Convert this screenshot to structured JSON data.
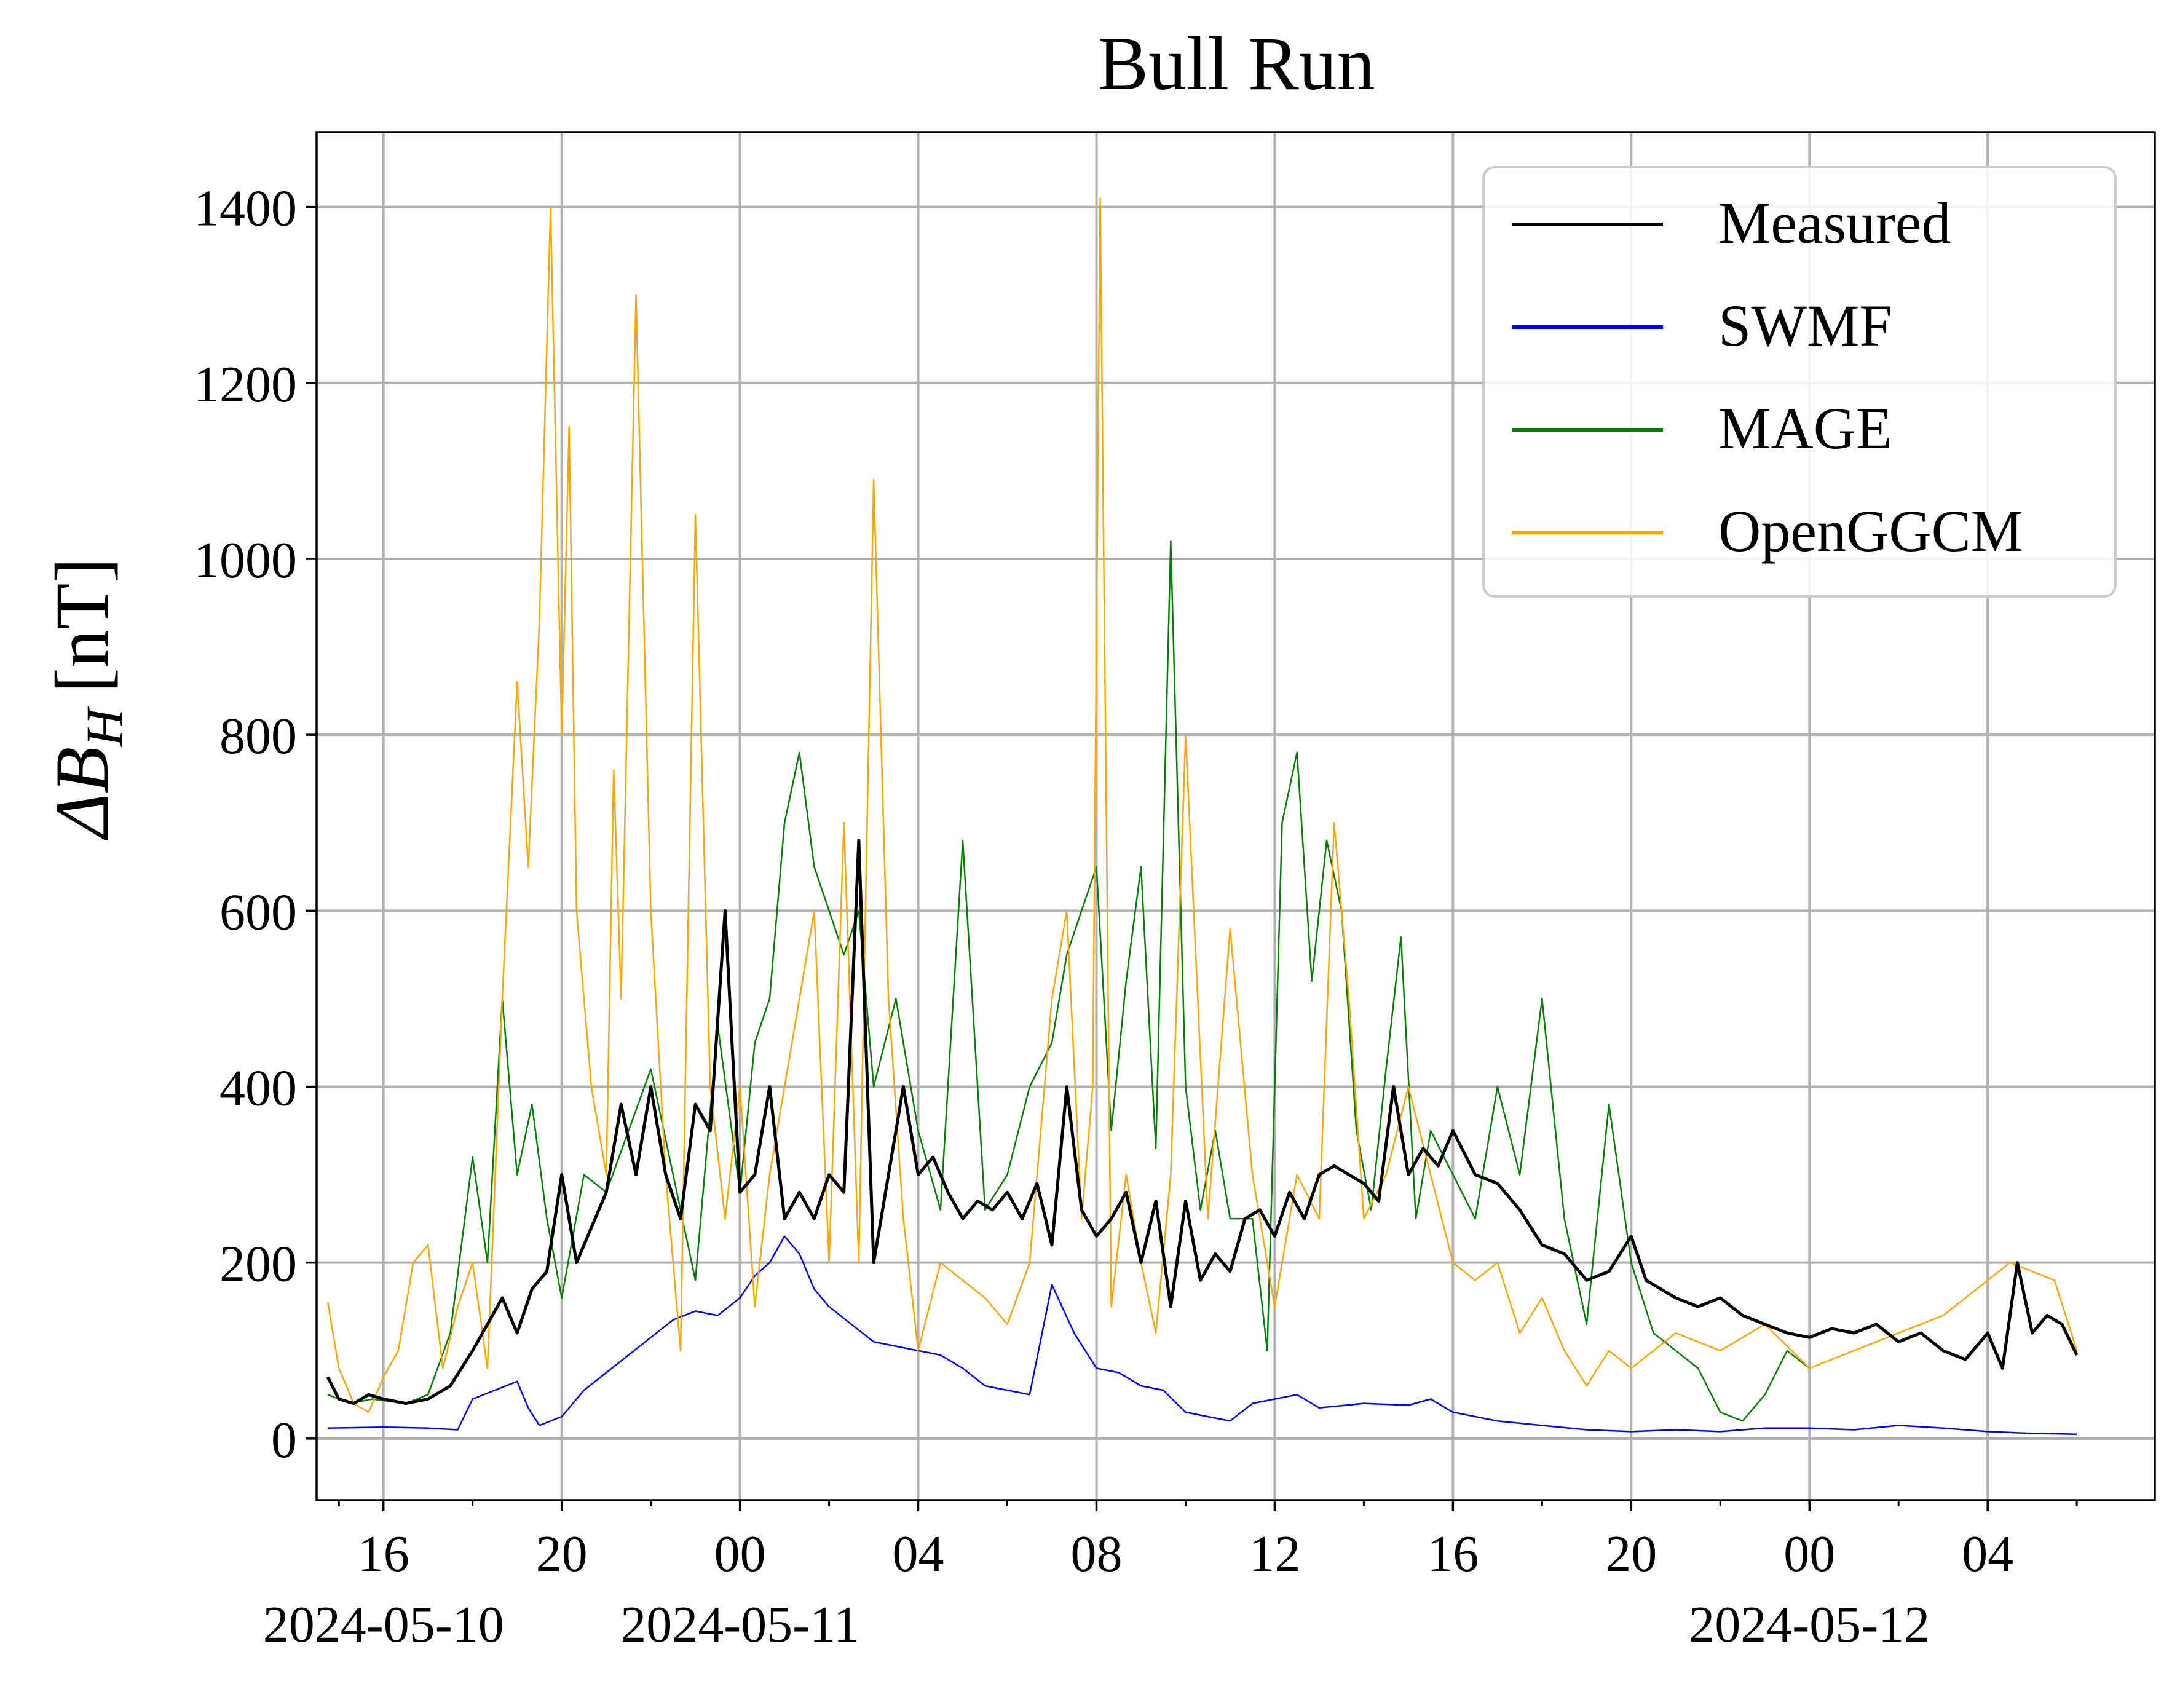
{
  "chart_data": {
    "type": "line",
    "title": "Bull Run",
    "ylabel": "ΔB",
    "ylabel_subscript": "H",
    "ylabel_unit": "[nT]",
    "xlabel": "",
    "x_axis": "datetime",
    "xlim": [
      "2024-05-10T14:30",
      "2024-05-12T07:45"
    ],
    "ylim": [
      -70,
      1485
    ],
    "grid": true,
    "legend_position": "top-right",
    "x_major_ticks": [
      {
        "time": "2024-05-10T16:00",
        "label": "16",
        "date_label": "2024-05-10"
      },
      {
        "time": "2024-05-10T20:00",
        "label": "20",
        "date_label": ""
      },
      {
        "time": "2024-05-11T00:00",
        "label": "00",
        "date_label": "2024-05-11"
      },
      {
        "time": "2024-05-11T04:00",
        "label": "04",
        "date_label": ""
      },
      {
        "time": "2024-05-11T08:00",
        "label": "08",
        "date_label": ""
      },
      {
        "time": "2024-05-11T12:00",
        "label": "12",
        "date_label": ""
      },
      {
        "time": "2024-05-11T16:00",
        "label": "16",
        "date_label": ""
      },
      {
        "time": "2024-05-11T20:00",
        "label": "20",
        "date_label": ""
      },
      {
        "time": "2024-05-12T00:00",
        "label": "00",
        "date_label": "2024-05-12"
      },
      {
        "time": "2024-05-12T04:00",
        "label": "04",
        "date_label": ""
      }
    ],
    "x_minor_ticks": [
      "2024-05-10T15:00",
      "2024-05-10T18:00",
      "2024-05-10T22:00",
      "2024-05-11T02:00",
      "2024-05-11T06:00",
      "2024-05-11T10:00",
      "2024-05-11T14:00",
      "2024-05-11T18:00",
      "2024-05-11T22:00",
      "2024-05-12T02:00",
      "2024-05-12T06:00"
    ],
    "y_ticks": [
      0,
      200,
      400,
      600,
      800,
      1000,
      1200,
      1400
    ],
    "y_tick_labels": [
      "0",
      "200",
      "400",
      "600",
      "800",
      "1000",
      "1200",
      "1400"
    ],
    "series": [
      {
        "name": "SWMF",
        "color": "#0000ff",
        "x": [
          "2024-05-10T14:45",
          "2024-05-10T16:00",
          "2024-05-10T17:00",
          "2024-05-10T17:40",
          "2024-05-10T18:00",
          "2024-05-10T18:30",
          "2024-05-10T19:00",
          "2024-05-10T19:15",
          "2024-05-10T19:30",
          "2024-05-10T20:00",
          "2024-05-10T20:30",
          "2024-05-10T21:00",
          "2024-05-10T21:30",
          "2024-05-10T22:00",
          "2024-05-10T22:30",
          "2024-05-10T23:00",
          "2024-05-10T23:30",
          "2024-05-11T00:00",
          "2024-05-11T00:20",
          "2024-05-11T00:40",
          "2024-05-11T01:00",
          "2024-05-11T01:20",
          "2024-05-11T01:40",
          "2024-05-11T02:00",
          "2024-05-11T02:30",
          "2024-05-11T03:00",
          "2024-05-11T03:30",
          "2024-05-11T04:00",
          "2024-05-11T04:30",
          "2024-05-11T05:00",
          "2024-05-11T05:30",
          "2024-05-11T06:00",
          "2024-05-11T06:30",
          "2024-05-11T07:00",
          "2024-05-11T07:30",
          "2024-05-11T08:00",
          "2024-05-11T08:30",
          "2024-05-11T09:00",
          "2024-05-11T09:30",
          "2024-05-11T10:00",
          "2024-05-11T10:30",
          "2024-05-11T11:00",
          "2024-05-11T11:30",
          "2024-05-11T12:00",
          "2024-05-11T12:30",
          "2024-05-11T13:00",
          "2024-05-11T14:00",
          "2024-05-11T15:00",
          "2024-05-11T15:30",
          "2024-05-11T16:00",
          "2024-05-11T17:00",
          "2024-05-11T18:00",
          "2024-05-11T19:00",
          "2024-05-11T20:00",
          "2024-05-11T21:00",
          "2024-05-11T22:00",
          "2024-05-11T23:00",
          "2024-05-12T00:00",
          "2024-05-12T01:00",
          "2024-05-12T02:00",
          "2024-05-12T03:00",
          "2024-05-12T04:00",
          "2024-05-12T05:00",
          "2024-05-12T06:00"
        ],
        "y": [
          12,
          13,
          12,
          10,
          45,
          55,
          65,
          35,
          15,
          25,
          55,
          75,
          95,
          115,
          135,
          145,
          140,
          160,
          185,
          200,
          230,
          210,
          170,
          150,
          130,
          110,
          105,
          100,
          95,
          80,
          60,
          55,
          50,
          175,
          120,
          80,
          75,
          60,
          55,
          30,
          25,
          20,
          40,
          45,
          50,
          35,
          40,
          38,
          45,
          30,
          20,
          15,
          10,
          8,
          10,
          8,
          12,
          12,
          10,
          15,
          12,
          8,
          6,
          5
        ]
      },
      {
        "name": "MAGE",
        "color": "#008000",
        "x": [
          "2024-05-10T14:45",
          "2024-05-10T15:15",
          "2024-05-10T15:45",
          "2024-05-10T16:30",
          "2024-05-10T17:00",
          "2024-05-10T17:30",
          "2024-05-10T18:00",
          "2024-05-10T18:20",
          "2024-05-10T18:40",
          "2024-05-10T19:00",
          "2024-05-10T19:20",
          "2024-05-10T19:40",
          "2024-05-10T20:00",
          "2024-05-10T20:30",
          "2024-05-10T21:00",
          "2024-05-10T21:30",
          "2024-05-10T22:00",
          "2024-05-10T22:30",
          "2024-05-10T23:00",
          "2024-05-10T23:30",
          "2024-05-11T00:00",
          "2024-05-11T00:20",
          "2024-05-11T00:40",
          "2024-05-11T01:00",
          "2024-05-11T01:20",
          "2024-05-11T01:40",
          "2024-05-11T02:00",
          "2024-05-11T02:20",
          "2024-05-11T02:40",
          "2024-05-11T03:00",
          "2024-05-11T03:30",
          "2024-05-11T04:00",
          "2024-05-11T04:30",
          "2024-05-11T05:00",
          "2024-05-11T05:30",
          "2024-05-11T06:00",
          "2024-05-11T06:30",
          "2024-05-11T07:00",
          "2024-05-11T07:20",
          "2024-05-11T07:40",
          "2024-05-11T08:00",
          "2024-05-11T08:20",
          "2024-05-11T08:40",
          "2024-05-11T09:00",
          "2024-05-11T09:20",
          "2024-05-11T09:40",
          "2024-05-11T10:00",
          "2024-05-11T10:20",
          "2024-05-11T10:40",
          "2024-05-11T11:00",
          "2024-05-11T11:30",
          "2024-05-11T11:50",
          "2024-05-11T12:10",
          "2024-05-11T12:30",
          "2024-05-11T12:50",
          "2024-05-11T13:10",
          "2024-05-11T13:30",
          "2024-05-11T13:50",
          "2024-05-11T14:10",
          "2024-05-11T14:30",
          "2024-05-11T14:50",
          "2024-05-11T15:10",
          "2024-05-11T15:30",
          "2024-05-11T16:00",
          "2024-05-11T16:30",
          "2024-05-11T17:00",
          "2024-05-11T17:30",
          "2024-05-11T18:00",
          "2024-05-11T18:30",
          "2024-05-11T19:00",
          "2024-05-11T19:30",
          "2024-05-11T20:00",
          "2024-05-11T20:30",
          "2024-05-11T21:00",
          "2024-05-11T21:30",
          "2024-05-11T22:00",
          "2024-05-11T22:30",
          "2024-05-11T23:00",
          "2024-05-11T23:30",
          "2024-05-12T00:00"
        ],
        "y": [
          50,
          40,
          45,
          40,
          50,
          120,
          320,
          200,
          500,
          300,
          380,
          250,
          160,
          300,
          280,
          350,
          420,
          300,
          180,
          470,
          280,
          450,
          500,
          700,
          780,
          650,
          600,
          550,
          600,
          400,
          500,
          350,
          260,
          680,
          260,
          300,
          400,
          450,
          550,
          600,
          650,
          350,
          520,
          650,
          330,
          1020,
          400,
          260,
          350,
          250,
          250,
          100,
          700,
          780,
          520,
          680,
          600,
          350,
          260,
          420,
          570,
          250,
          350,
          300,
          250,
          400,
          300,
          500,
          250,
          130,
          380,
          200,
          120,
          100,
          80,
          30,
          20,
          50,
          100,
          80
        ]
      },
      {
        "name": "OpenGGCM",
        "color": "#ffa500",
        "x": [
          "2024-05-10T14:45",
          "2024-05-10T15:00",
          "2024-05-10T15:20",
          "2024-05-10T15:40",
          "2024-05-10T16:00",
          "2024-05-10T16:20",
          "2024-05-10T16:40",
          "2024-05-10T17:00",
          "2024-05-10T17:20",
          "2024-05-10T17:40",
          "2024-05-10T18:00",
          "2024-05-10T18:20",
          "2024-05-10T18:40",
          "2024-05-10T19:00",
          "2024-05-10T19:15",
          "2024-05-10T19:30",
          "2024-05-10T19:45",
          "2024-05-10T20:00",
          "2024-05-10T20:10",
          "2024-05-10T20:20",
          "2024-05-10T20:40",
          "2024-05-10T21:00",
          "2024-05-10T21:10",
          "2024-05-10T21:20",
          "2024-05-10T21:40",
          "2024-05-10T22:00",
          "2024-05-10T22:20",
          "2024-05-10T22:40",
          "2024-05-10T23:00",
          "2024-05-10T23:20",
          "2024-05-10T23:40",
          "2024-05-11T00:00",
          "2024-05-11T00:20",
          "2024-05-11T00:40",
          "2024-05-11T01:00",
          "2024-05-11T01:20",
          "2024-05-11T01:40",
          "2024-05-11T02:00",
          "2024-05-11T02:20",
          "2024-05-11T02:40",
          "2024-05-11T03:00",
          "2024-05-11T03:20",
          "2024-05-11T03:40",
          "2024-05-11T04:00",
          "2024-05-11T04:30",
          "2024-05-11T05:00",
          "2024-05-11T05:30",
          "2024-05-11T06:00",
          "2024-05-11T06:30",
          "2024-05-11T07:00",
          "2024-05-11T07:20",
          "2024-05-11T07:40",
          "2024-05-11T07:55",
          "2024-05-11T08:05",
          "2024-05-11T08:20",
          "2024-05-11T08:40",
          "2024-05-11T09:00",
          "2024-05-11T09:20",
          "2024-05-11T09:40",
          "2024-05-11T10:00",
          "2024-05-11T10:30",
          "2024-05-11T11:00",
          "2024-05-11T11:30",
          "2024-05-11T12:00",
          "2024-05-11T12:30",
          "2024-05-11T13:00",
          "2024-05-11T13:20",
          "2024-05-11T13:40",
          "2024-05-11T14:00",
          "2024-05-11T14:30",
          "2024-05-11T15:00",
          "2024-05-11T15:30",
          "2024-05-11T16:00",
          "2024-05-11T16:30",
          "2024-05-11T17:00",
          "2024-05-11T17:30",
          "2024-05-11T18:00",
          "2024-05-11T18:30",
          "2024-05-11T19:00",
          "2024-05-11T19:30",
          "2024-05-11T20:00",
          "2024-05-11T21:00",
          "2024-05-11T22:00",
          "2024-05-11T23:00",
          "2024-05-12T00:00",
          "2024-05-12T01:00",
          "2024-05-12T02:00",
          "2024-05-12T03:00",
          "2024-05-12T04:00",
          "2024-05-12T04:30",
          "2024-05-12T05:00",
          "2024-05-12T05:30",
          "2024-05-12T06:00"
        ],
        "y": [
          155,
          80,
          40,
          30,
          70,
          100,
          200,
          220,
          80,
          150,
          200,
          80,
          500,
          860,
          650,
          930,
          1400,
          800,
          1150,
          600,
          400,
          300,
          760,
          500,
          1300,
          600,
          300,
          100,
          1050,
          400,
          250,
          400,
          150,
          300,
          400,
          500,
          600,
          200,
          700,
          200,
          1090,
          500,
          250,
          100,
          200,
          180,
          160,
          130,
          200,
          500,
          600,
          250,
          400,
          1410,
          150,
          300,
          200,
          120,
          300,
          800,
          250,
          580,
          300,
          150,
          300,
          250,
          700,
          500,
          250,
          300,
          400,
          300,
          200,
          180,
          200,
          120,
          160,
          100,
          60,
          100,
          80,
          120,
          100,
          130,
          80,
          100,
          120,
          140,
          180,
          200,
          190,
          180,
          100
        ]
      },
      {
        "name": "Measured",
        "color": "#000000",
        "x": [
          "2024-05-10T14:45",
          "2024-05-10T15:00",
          "2024-05-10T15:20",
          "2024-05-10T15:40",
          "2024-05-10T16:00",
          "2024-05-10T16:30",
          "2024-05-10T17:00",
          "2024-05-10T17:30",
          "2024-05-10T18:00",
          "2024-05-10T18:20",
          "2024-05-10T18:40",
          "2024-05-10T19:00",
          "2024-05-10T19:20",
          "2024-05-10T19:40",
          "2024-05-10T20:00",
          "2024-05-10T20:20",
          "2024-05-10T20:40",
          "2024-05-10T21:00",
          "2024-05-10T21:20",
          "2024-05-10T21:40",
          "2024-05-10T22:00",
          "2024-05-10T22:20",
          "2024-05-10T22:40",
          "2024-05-10T23:00",
          "2024-05-10T23:20",
          "2024-05-10T23:40",
          "2024-05-11T00:00",
          "2024-05-11T00:20",
          "2024-05-11T00:40",
          "2024-05-11T01:00",
          "2024-05-11T01:20",
          "2024-05-11T01:40",
          "2024-05-11T02:00",
          "2024-05-11T02:20",
          "2024-05-11T02:40",
          "2024-05-11T03:00",
          "2024-05-11T03:20",
          "2024-05-11T03:40",
          "2024-05-11T04:00",
          "2024-05-11T04:20",
          "2024-05-11T04:40",
          "2024-05-11T05:00",
          "2024-05-11T05:20",
          "2024-05-11T05:40",
          "2024-05-11T06:00",
          "2024-05-11T06:20",
          "2024-05-11T06:40",
          "2024-05-11T07:00",
          "2024-05-11T07:20",
          "2024-05-11T07:40",
          "2024-05-11T08:00",
          "2024-05-11T08:20",
          "2024-05-11T08:40",
          "2024-05-11T09:00",
          "2024-05-11T09:20",
          "2024-05-11T09:40",
          "2024-05-11T10:00",
          "2024-05-11T10:20",
          "2024-05-11T10:40",
          "2024-05-11T11:00",
          "2024-05-11T11:20",
          "2024-05-11T11:40",
          "2024-05-11T12:00",
          "2024-05-11T12:20",
          "2024-05-11T12:40",
          "2024-05-11T13:00",
          "2024-05-11T13:20",
          "2024-05-11T13:40",
          "2024-05-11T14:00",
          "2024-05-11T14:20",
          "2024-05-11T14:40",
          "2024-05-11T15:00",
          "2024-05-11T15:20",
          "2024-05-11T15:40",
          "2024-05-11T16:00",
          "2024-05-11T16:30",
          "2024-05-11T17:00",
          "2024-05-11T17:30",
          "2024-05-11T18:00",
          "2024-05-11T18:30",
          "2024-05-11T19:00",
          "2024-05-11T19:30",
          "2024-05-11T20:00",
          "2024-05-11T20:20",
          "2024-05-11T20:40",
          "2024-05-11T21:00",
          "2024-05-11T21:30",
          "2024-05-11T22:00",
          "2024-05-11T22:30",
          "2024-05-11T23:00",
          "2024-05-11T23:30",
          "2024-05-12T00:00",
          "2024-05-12T00:30",
          "2024-05-12T01:00",
          "2024-05-12T01:30",
          "2024-05-12T02:00",
          "2024-05-12T02:30",
          "2024-05-12T03:00",
          "2024-05-12T03:30",
          "2024-05-12T04:00",
          "2024-05-12T04:20",
          "2024-05-12T04:40",
          "2024-05-12T05:00",
          "2024-05-12T05:20",
          "2024-05-12T05:40",
          "2024-05-12T06:00"
        ],
        "y": [
          70,
          45,
          40,
          50,
          45,
          40,
          45,
          60,
          100,
          130,
          160,
          120,
          170,
          190,
          300,
          200,
          240,
          280,
          380,
          300,
          400,
          300,
          250,
          380,
          350,
          600,
          280,
          300,
          400,
          250,
          280,
          250,
          300,
          280,
          680,
          200,
          300,
          400,
          300,
          320,
          280,
          250,
          270,
          260,
          280,
          250,
          290,
          220,
          400,
          260,
          230,
          250,
          280,
          200,
          270,
          150,
          270,
          180,
          210,
          190,
          250,
          260,
          230,
          280,
          250,
          300,
          310,
          300,
          290,
          270,
          400,
          300,
          330,
          310,
          350,
          300,
          290,
          260,
          220,
          210,
          180,
          190,
          230,
          180,
          170,
          160,
          150,
          160,
          140,
          130,
          120,
          115,
          125,
          120,
          130,
          110,
          120,
          100,
          90,
          120,
          80,
          200,
          120,
          140,
          130,
          95
        ]
      }
    ]
  }
}
